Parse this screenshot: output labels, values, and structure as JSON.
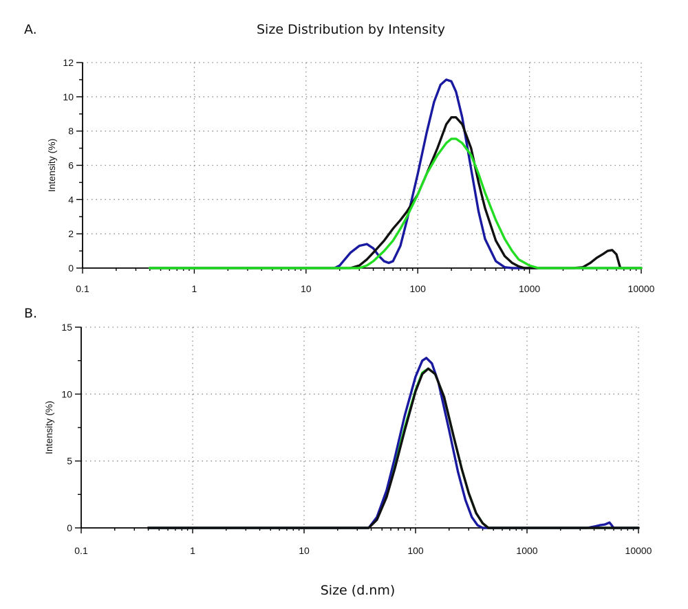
{
  "figure": {
    "title": "Size Distribution by Intensity",
    "xlabel": "Size (d.nm)"
  },
  "chart_data": [
    {
      "type": "line",
      "panel": "A.",
      "title": "Size Distribution by Intensity",
      "xlabel": "",
      "ylabel": "Intensity (%)",
      "xscale": "log",
      "xlim": [
        0.1,
        10000
      ],
      "ylim": [
        0,
        12
      ],
      "xticks": [
        0.1,
        1,
        10,
        100,
        1000,
        10000
      ],
      "xtick_labels": [
        "0.1",
        "1",
        "10",
        "100",
        "1000",
        "10000"
      ],
      "yticks": [
        0,
        2,
        4,
        6,
        8,
        10,
        12
      ],
      "ytick_labels": [
        "0",
        "2",
        "4",
        "6",
        "8",
        "10",
        "12"
      ],
      "grid": true,
      "series": [
        {
          "color": "#1a1aa0",
          "x": [
            0.4,
            18,
            20,
            25,
            30,
            35,
            40,
            45,
            50,
            55,
            60,
            70,
            80,
            100,
            120,
            140,
            160,
            180,
            200,
            220,
            250,
            300,
            350,
            400,
            500,
            600,
            700,
            10000
          ],
          "y": [
            0,
            0,
            0.15,
            0.9,
            1.3,
            1.4,
            1.15,
            0.7,
            0.4,
            0.3,
            0.4,
            1.3,
            2.8,
            5.5,
            7.9,
            9.7,
            10.7,
            11.0,
            10.9,
            10.3,
            8.8,
            5.8,
            3.3,
            1.7,
            0.4,
            0.05,
            0,
            0
          ]
        },
        {
          "color": "#111111",
          "x": [
            0.4,
            25,
            30,
            35,
            40,
            50,
            60,
            70,
            80,
            100,
            120,
            150,
            180,
            200,
            220,
            250,
            300,
            350,
            400,
            500,
            600,
            700,
            800,
            900,
            2500,
            3000,
            3500,
            4000,
            4500,
            5000,
            5500,
            6000,
            6500,
            10000
          ],
          "y": [
            0,
            0,
            0.15,
            0.5,
            0.9,
            1.6,
            2.3,
            2.8,
            3.3,
            4.3,
            5.5,
            7.0,
            8.4,
            8.8,
            8.8,
            8.4,
            7.0,
            5.0,
            3.5,
            1.6,
            0.7,
            0.3,
            0.1,
            0,
            0,
            0.05,
            0.3,
            0.6,
            0.8,
            1.0,
            1.05,
            0.8,
            0,
            0
          ]
        },
        {
          "color": "#22dd22",
          "x": [
            0.4,
            30,
            35,
            40,
            50,
            60,
            70,
            80,
            100,
            120,
            150,
            180,
            200,
            220,
            250,
            300,
            350,
            400,
            500,
            600,
            700,
            800,
            1000,
            1200,
            10000
          ],
          "y": [
            0,
            0,
            0.15,
            0.4,
            1.0,
            1.6,
            2.3,
            3.0,
            4.3,
            5.5,
            6.6,
            7.3,
            7.55,
            7.55,
            7.3,
            6.6,
            5.5,
            4.4,
            2.8,
            1.7,
            1.0,
            0.5,
            0.15,
            0,
            0
          ]
        }
      ]
    },
    {
      "type": "line",
      "panel": "B.",
      "title": "",
      "xlabel": "Size (d.nm)",
      "ylabel": "Intensity (%)",
      "xscale": "log",
      "xlim": [
        0.1,
        10000
      ],
      "ylim": [
        0,
        15
      ],
      "xticks": [
        0.1,
        1,
        10,
        100,
        1000,
        10000
      ],
      "xtick_labels": [
        "0.1",
        "1",
        "10",
        "100",
        "1000",
        "10000"
      ],
      "yticks": [
        0,
        5,
        10,
        15
      ],
      "ytick_labels": [
        "0",
        "5",
        "10",
        "15"
      ],
      "grid": true,
      "series": [
        {
          "color": "#22dd22",
          "x": [
            0.4,
            38,
            45,
            55,
            65,
            80,
            100,
            115,
            130,
            150,
            180,
            220,
            260,
            300,
            350,
            400,
            450,
            10000
          ],
          "y": [
            0,
            0,
            0.7,
            2.5,
            4.6,
            7.5,
            10.3,
            11.6,
            11.9,
            11.5,
            9.8,
            6.8,
            4.4,
            2.6,
            1.1,
            0.35,
            0,
            0
          ]
        },
        {
          "color": "#1a1aa0",
          "x": [
            0.4,
            38,
            45,
            55,
            65,
            80,
            100,
            115,
            125,
            140,
            160,
            200,
            240,
            280,
            320,
            360,
            400,
            3500,
            4000,
            4500,
            5000,
            5500,
            6000,
            10000
          ],
          "y": [
            0,
            0,
            0.8,
            2.8,
            5.2,
            8.4,
            11.3,
            12.5,
            12.7,
            12.3,
            10.9,
            7.3,
            4.2,
            2.1,
            0.8,
            0.2,
            0,
            0,
            0.1,
            0.2,
            0.25,
            0.4,
            0,
            0
          ]
        },
        {
          "color": "#111111",
          "x": [
            0.4,
            38,
            45,
            55,
            65,
            80,
            100,
            115,
            130,
            150,
            180,
            220,
            260,
            300,
            350,
            400,
            450,
            10000
          ],
          "y": [
            0,
            0,
            0.6,
            2.3,
            4.4,
            7.3,
            10.2,
            11.5,
            11.9,
            11.5,
            9.8,
            6.8,
            4.4,
            2.6,
            1.1,
            0.35,
            0,
            0
          ]
        }
      ]
    }
  ]
}
